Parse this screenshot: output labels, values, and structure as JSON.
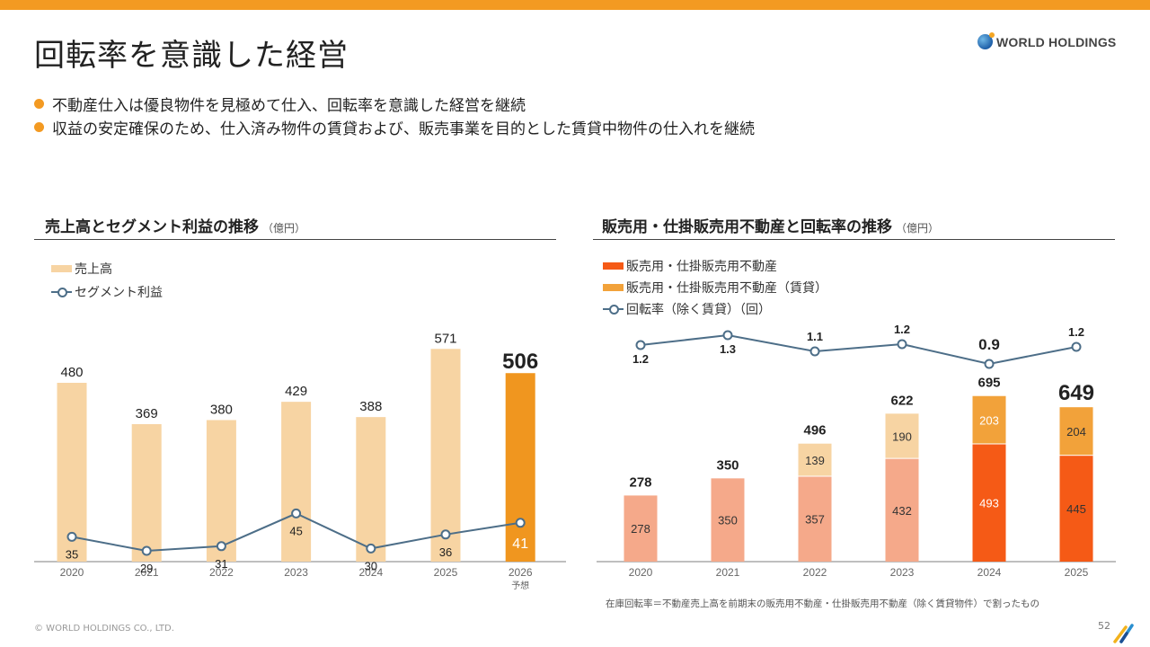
{
  "header": {
    "title": "回転率を意識した経営",
    "logo_text": "WORLD HOLDINGS",
    "accent_color": "#f39a22"
  },
  "bullets": [
    "不動産仕入は優良物件を見極めて仕入、回転率を意識した経営を継続",
    "収益の安定確保のため、仕入済み物件の賃貸および、販売事業を目的とした賃貸中物件の仕入れを継続"
  ],
  "left_panel": {
    "title": "売上高とセグメント利益の推移",
    "unit": "（億円）",
    "legend": [
      "売上高",
      "セグメント利益"
    ]
  },
  "right_panel": {
    "title": "販売用・仕掛販売用不動産と回転率の推移",
    "unit": "（億円）",
    "legend": [
      "販売用・仕掛販売用不動産",
      "販売用・仕掛販売用不動産（賃貸）",
      "回転率（除く賃貸）（回）"
    ],
    "note": "在庫回転率＝不動産売上高を前期末の販売用不動産・仕掛販売用不動産（除く賃貸物件）で割ったもの"
  },
  "footer": {
    "copyright": "© WORLD HOLDINGS CO., LTD.",
    "page_number": "52"
  },
  "chart_data": [
    {
      "type": "bar",
      "title": "売上高とセグメント利益の推移",
      "unit": "億円",
      "categories": [
        "2020",
        "2021",
        "2022",
        "2023",
        "2024",
        "2025",
        "2026"
      ],
      "category_sublabels": [
        "",
        "",
        "",
        "",
        "",
        "",
        "予想"
      ],
      "series": [
        {
          "name": "売上高",
          "kind": "bar",
          "values": [
            480,
            369,
            380,
            429,
            388,
            571,
            506
          ],
          "color": "#f7d4a3",
          "highlight_color": "#f0961f",
          "highlight_index": 6
        },
        {
          "name": "セグメント利益",
          "kind": "line",
          "values": [
            35,
            29,
            31,
            45,
            30,
            36,
            41
          ],
          "color": "#4d6e88"
        }
      ],
      "bar_ylim": [
        0,
        600
      ],
      "line_ylim": [
        0,
        120
      ],
      "grid": false
    },
    {
      "type": "bar",
      "stacked": true,
      "title": "販売用・仕掛販売用不動産と回転率の推移",
      "unit": "億円",
      "categories": [
        "2020",
        "2021",
        "2022",
        "2023",
        "2024",
        "2025"
      ],
      "series": [
        {
          "name": "販売用・仕掛販売用不動産",
          "kind": "bar",
          "values": [
            278,
            350,
            357,
            432,
            493,
            445
          ],
          "colors": [
            "#f5a98a",
            "#f5a98a",
            "#f5a98a",
            "#f5a98a",
            "#f55a16",
            "#f55a16"
          ]
        },
        {
          "name": "販売用・仕掛販売用不動産（賃貸）",
          "kind": "bar",
          "values": [
            0,
            0,
            139,
            190,
            203,
            204
          ],
          "colors": [
            "#f7d4a3",
            "#f7d4a3",
            "#f7d4a3",
            "#f7d4a3",
            "#f2a23a",
            "#f2a23a"
          ]
        },
        {
          "name": "回転率（除く賃貸）（回）",
          "kind": "line",
          "values": [
            1.2,
            1.3,
            1.1,
            1.2,
            0.9,
            1.2
          ],
          "color": "#4d6e88"
        }
      ],
      "totals": [
        278,
        350,
        496,
        622,
        695,
        649
      ],
      "bar_ylim": [
        0,
        800
      ],
      "line_ylim": [
        0.9,
        1.3
      ],
      "grid": false
    }
  ]
}
